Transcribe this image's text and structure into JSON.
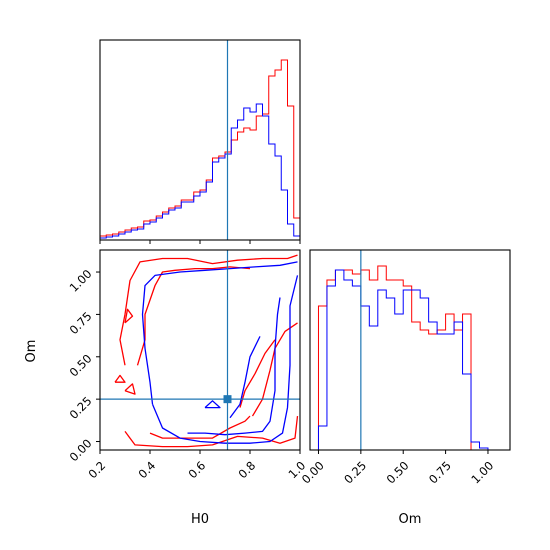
{
  "chart_data": {
    "type": "corner",
    "parameters": [
      "H0",
      "Om"
    ],
    "truths": {
      "H0": 0.71,
      "Om": 0.25
    },
    "colors": {
      "series_red": "#ff0000",
      "series_blue": "#0000ff",
      "truth": "#1f77b4",
      "axis": "#000000"
    },
    "panels": [
      {
        "id": "H0-marginal",
        "type": "histogram",
        "x_param": "H0",
        "xlim": [
          0.2,
          1.0
        ],
        "xticks": [
          0.2,
          0.4,
          0.6,
          0.8,
          1.0
        ],
        "tick_labels_shown": false,
        "bin_edges": [
          0.2,
          0.225,
          0.25,
          0.275,
          0.3,
          0.325,
          0.35,
          0.375,
          0.4,
          0.425,
          0.45,
          0.475,
          0.5,
          0.525,
          0.55,
          0.575,
          0.6,
          0.625,
          0.65,
          0.675,
          0.7,
          0.725,
          0.75,
          0.775,
          0.8,
          0.825,
          0.85,
          0.875,
          0.9,
          0.925,
          0.95,
          0.975,
          1.0
        ],
        "ylim": [
          0,
          1.0
        ],
        "series": [
          {
            "color": "red",
            "counts": [
              0.02,
              0.025,
              0.03,
              0.04,
              0.05,
              0.06,
              0.065,
              0.095,
              0.1,
              0.12,
              0.14,
              0.16,
              0.17,
              0.2,
              0.2,
              0.24,
              0.25,
              0.3,
              0.41,
              0.42,
              0.44,
              0.5,
              0.54,
              0.56,
              0.55,
              0.62,
              0.63,
              0.82,
              0.85,
              0.9,
              0.67,
              0.11
            ]
          },
          {
            "color": "blue",
            "counts": [
              0.01,
              0.015,
              0.02,
              0.03,
              0.04,
              0.05,
              0.055,
              0.08,
              0.09,
              0.11,
              0.13,
              0.15,
              0.16,
              0.19,
              0.19,
              0.22,
              0.24,
              0.29,
              0.39,
              0.41,
              0.43,
              0.56,
              0.6,
              0.66,
              0.64,
              0.68,
              0.62,
              0.48,
              0.42,
              0.25,
              0.08,
              0.02
            ]
          }
        ]
      },
      {
        "id": "H0-Om-joint",
        "type": "contour",
        "x_param": "H0",
        "y_param": "Om",
        "xlim": [
          0.2,
          1.0
        ],
        "ylim": [
          -0.05,
          1.13
        ],
        "xticks": [
          0.2,
          0.4,
          0.6,
          0.8,
          1.0
        ],
        "xtick_labels": [
          "0.2",
          "0.4",
          "0.6",
          "0.8",
          "1.0"
        ],
        "yticks": [
          0.0,
          0.25,
          0.5,
          0.75,
          1.0
        ],
        "ytick_labels": [
          "0.00",
          "0.25",
          "0.50",
          "0.75",
          "1.00"
        ],
        "xlabel": "H0",
        "ylabel": "Om",
        "contours": [
          {
            "color": "red",
            "points": [
              [
                0.3,
                0.45
              ],
              [
                0.28,
                0.6
              ],
              [
                0.3,
                0.75
              ],
              [
                0.32,
                0.95
              ],
              [
                0.36,
                1.06
              ],
              [
                0.45,
                1.08
              ],
              [
                0.55,
                1.08
              ],
              [
                0.65,
                1.05
              ],
              [
                0.75,
                1.07
              ],
              [
                0.85,
                1.08
              ],
              [
                0.95,
                1.08
              ],
              [
                0.99,
                1.1
              ]
            ]
          },
          {
            "color": "red",
            "points": [
              [
                0.3,
                0.06
              ],
              [
                0.34,
                -0.02
              ],
              [
                0.45,
                -0.03
              ],
              [
                0.55,
                -0.03
              ],
              [
                0.65,
                -0.02
              ],
              [
                0.75,
                0.03
              ],
              [
                0.85,
                0.02
              ],
              [
                0.92,
                -0.01
              ],
              [
                0.98,
                0.02
              ],
              [
                0.99,
                0.15
              ]
            ]
          },
          {
            "color": "red",
            "points": [
              [
                0.35,
                0.45
              ],
              [
                0.38,
                0.6
              ],
              [
                0.38,
                0.75
              ],
              [
                0.42,
                0.92
              ],
              [
                0.45,
                1.0
              ],
              [
                0.5,
                1.01
              ],
              [
                0.58,
                1.02
              ],
              [
                0.65,
                1.02
              ],
              [
                0.72,
                1.03
              ],
              [
                0.8,
                1.02
              ]
            ]
          },
          {
            "color": "red",
            "points": [
              [
                0.4,
                0.05
              ],
              [
                0.45,
                0.02
              ],
              [
                0.55,
                0.02
              ],
              [
                0.65,
                0.02
              ],
              [
                0.72,
                0.08
              ],
              [
                0.78,
                0.12
              ],
              [
                0.8,
                0.15
              ]
            ]
          },
          {
            "color": "red",
            "points": [
              [
                0.81,
                0.15
              ],
              [
                0.85,
                0.25
              ],
              [
                0.88,
                0.42
              ],
              [
                0.9,
                0.55
              ],
              [
                0.94,
                0.65
              ],
              [
                0.99,
                0.7
              ]
            ]
          },
          {
            "color": "red",
            "points": [
              [
                0.76,
                0.2
              ],
              [
                0.78,
                0.3
              ],
              [
                0.82,
                0.4
              ],
              [
                0.86,
                0.52
              ],
              [
                0.9,
                0.6
              ]
            ]
          },
          {
            "color": "red",
            "points": [
              [
                0.3,
                0.7
              ],
              [
                0.33,
                0.74
              ],
              [
                0.31,
                0.78
              ],
              [
                0.3,
                0.7
              ]
            ]
          },
          {
            "color": "red",
            "points": [
              [
                0.3,
                0.3
              ],
              [
                0.33,
                0.34
              ],
              [
                0.34,
                0.28
              ],
              [
                0.3,
                0.3
              ]
            ]
          },
          {
            "color": "red",
            "points": [
              [
                0.26,
                0.35
              ],
              [
                0.28,
                0.39
              ],
              [
                0.3,
                0.35
              ],
              [
                0.26,
                0.35
              ]
            ]
          },
          {
            "color": "blue",
            "points": [
              [
                0.41,
                0.22
              ],
              [
                0.4,
                0.35
              ],
              [
                0.38,
                0.55
              ],
              [
                0.37,
                0.75
              ],
              [
                0.38,
                0.92
              ],
              [
                0.42,
                0.98
              ],
              [
                0.52,
                1.0
              ],
              [
                0.62,
                1.01
              ],
              [
                0.72,
                1.02
              ],
              [
                0.82,
                1.03
              ],
              [
                0.92,
                1.04
              ],
              [
                0.99,
                1.06
              ]
            ]
          },
          {
            "color": "blue",
            "points": [
              [
                0.41,
                0.22
              ],
              [
                0.45,
                0.08
              ],
              [
                0.52,
                0.02
              ],
              [
                0.6,
                0.0
              ],
              [
                0.7,
                -0.01
              ],
              [
                0.8,
                -0.01
              ],
              [
                0.88,
                0.0
              ],
              [
                0.93,
                0.05
              ],
              [
                0.95,
                0.2
              ],
              [
                0.96,
                0.45
              ],
              [
                0.96,
                0.8
              ],
              [
                0.99,
                0.98
              ]
            ]
          },
          {
            "color": "blue",
            "points": [
              [
                0.55,
                0.05
              ],
              [
                0.62,
                0.05
              ],
              [
                0.7,
                0.04
              ],
              [
                0.78,
                0.05
              ],
              [
                0.85,
                0.06
              ],
              [
                0.88,
                0.12
              ],
              [
                0.9,
                0.3
              ],
              [
                0.9,
                0.55
              ],
              [
                0.91,
                0.75
              ],
              [
                0.92,
                0.85
              ]
            ]
          },
          {
            "color": "blue",
            "points": [
              [
                0.72,
                0.14
              ],
              [
                0.76,
                0.22
              ],
              [
                0.78,
                0.35
              ],
              [
                0.8,
                0.5
              ],
              [
                0.84,
                0.62
              ]
            ]
          },
          {
            "color": "blue",
            "points": [
              [
                0.62,
                0.2
              ],
              [
                0.65,
                0.24
              ],
              [
                0.68,
                0.2
              ],
              [
                0.62,
                0.2
              ]
            ]
          }
        ]
      },
      {
        "id": "Om-marginal",
        "type": "histogram",
        "x_param": "Om",
        "xlim": [
          -0.05,
          1.13
        ],
        "xticks": [
          0.0,
          0.25,
          0.5,
          0.75,
          1.0
        ],
        "xtick_labels": [
          "0.00",
          "0.25",
          "0.50",
          "0.75",
          "1.00"
        ],
        "xlabel": "Om",
        "ylim": [
          0,
          1.0
        ],
        "bin_edges": [
          0.0,
          0.05,
          0.1,
          0.15,
          0.2,
          0.25,
          0.3,
          0.35,
          0.4,
          0.45,
          0.5,
          0.55,
          0.6,
          0.65,
          0.7,
          0.75,
          0.8,
          0.85,
          0.9,
          0.95,
          1.0,
          1.05,
          1.1,
          1.13
        ],
        "series": [
          {
            "color": "red",
            "counts": [
              0.72,
              0.85,
              0.9,
              0.9,
              0.88,
              0.9,
              0.85,
              0.92,
              0.85,
              0.85,
              0.82,
              0.64,
              0.6,
              0.58,
              0.6,
              0.68,
              0.6,
              0.68,
              0.0,
              0.0,
              0.0,
              0.0,
              0.0
            ]
          },
          {
            "color": "blue",
            "counts": [
              0.12,
              0.82,
              0.9,
              0.85,
              0.82,
              0.72,
              0.62,
              0.8,
              0.76,
              0.68,
              0.8,
              0.8,
              0.76,
              0.64,
              0.58,
              0.58,
              0.64,
              0.38,
              0.04,
              0.01,
              0.0,
              0.0,
              0.0
            ]
          }
        ]
      }
    ]
  }
}
